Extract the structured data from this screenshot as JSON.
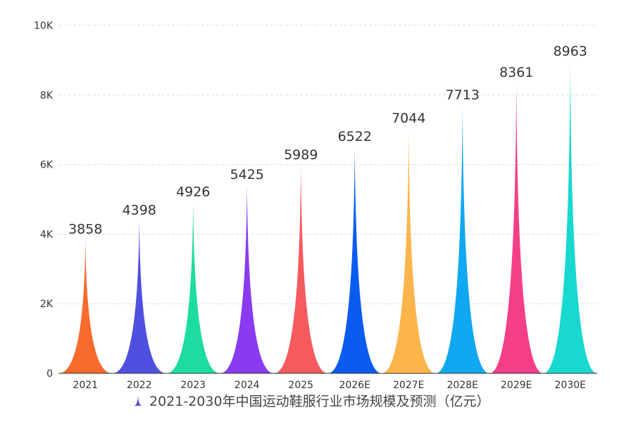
{
  "chart_data": {
    "type": "bar",
    "subtype": "pictorial-spike",
    "title": "",
    "categories": [
      "2021",
      "2022",
      "2023",
      "2024",
      "2025",
      "2026E",
      "2027E",
      "2028E",
      "2029E",
      "2030E"
    ],
    "series": [
      {
        "name": "2021-2030年中国运动鞋服行业市场规模及预测（亿元）",
        "values": [
          3858,
          4398,
          4926,
          5425,
          5989,
          6522,
          7044,
          7713,
          8361,
          8963
        ]
      }
    ],
    "colors": [
      "#F76B2D",
      "#5050E0",
      "#1DDCA0",
      "#8A3BF0",
      "#F55A5F",
      "#0A5CF0",
      "#FBB54A",
      "#10A8F0",
      "#F43F88",
      "#18D8D0"
    ],
    "xlabel": "",
    "ylabel": "",
    "ylim": [
      0,
      10000
    ],
    "yticks": [
      0,
      2000,
      4000,
      6000,
      8000,
      10000
    ],
    "ytick_labels": [
      "0",
      "2K",
      "4K",
      "6K",
      "8K",
      "10K"
    ],
    "grid": true,
    "data_labels": true,
    "legend_position": "bottom"
  },
  "legend": {
    "label": "2021-2030年中国运动鞋服行业市场规模及预测（亿元）",
    "icon": "spike-icon",
    "icon_color": "#5050E0"
  }
}
